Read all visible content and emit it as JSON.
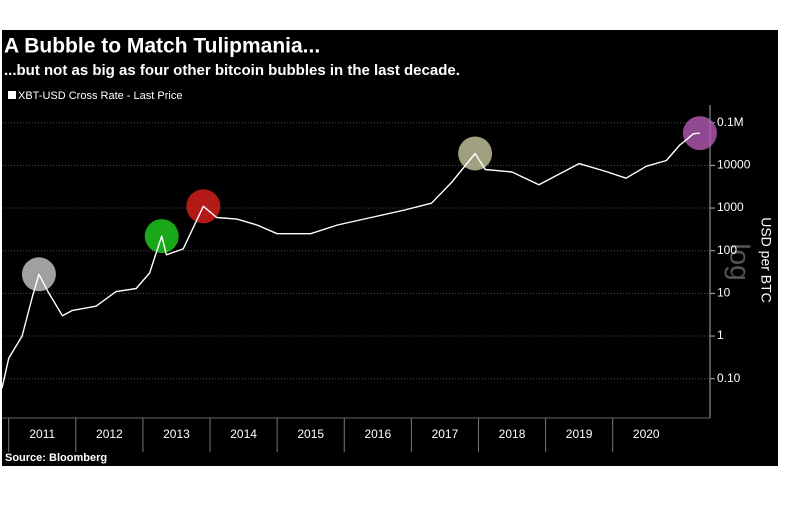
{
  "chart_data": {
    "type": "line",
    "title": "A Bubble to Match Tulipmania...",
    "subtitle": "...but not as big as four other bitcoin bubbles in the last decade.",
    "y_axis_label": "USD per BTC",
    "log_label": "log",
    "source": "Source: Bloomberg",
    "log_scale": true,
    "grid": true,
    "legend": "top-left",
    "xlim": [
      2010.9,
      2021.45
    ],
    "xticks": [
      {
        "value": 2011,
        "label": "2011"
      },
      {
        "value": 2012,
        "label": "2012"
      },
      {
        "value": 2013,
        "label": "2013"
      },
      {
        "value": 2014,
        "label": "2014"
      },
      {
        "value": 2015,
        "label": "2015"
      },
      {
        "value": 2016,
        "label": "2016"
      },
      {
        "value": 2017,
        "label": "2017"
      },
      {
        "value": 2018,
        "label": "2018"
      },
      {
        "value": 2019,
        "label": "2019"
      },
      {
        "value": 2020,
        "label": "2020"
      }
    ],
    "ylim": [
      0.012,
      260000
    ],
    "yticks": [
      {
        "value": 100000,
        "label": "0.1M"
      },
      10000,
      1000,
      100,
      10,
      1,
      {
        "value": 0.1,
        "label": "0.10"
      }
    ],
    "series": [
      {
        "name": "XBT-USD Cross Rate - Last Price",
        "color": "#ffffff",
        "x": [
          2010.9,
          2011.0,
          2011.2,
          2011.35,
          2011.45,
          2011.6,
          2011.8,
          2011.95,
          2012.3,
          2012.6,
          2012.9,
          2013.1,
          2013.28,
          2013.35,
          2013.6,
          2013.9,
          2014.1,
          2014.4,
          2014.7,
          2015.0,
          2015.5,
          2015.9,
          2016.5,
          2016.9,
          2017.3,
          2017.6,
          2017.95,
          2018.1,
          2018.5,
          2018.9,
          2019.5,
          2019.9,
          2020.2,
          2020.5,
          2020.8,
          2021.0,
          2021.1,
          2021.2,
          2021.3
        ],
        "values": [
          0.06,
          0.3,
          1,
          8,
          28,
          10,
          3,
          4,
          5,
          11,
          13,
          30,
          220,
          80,
          110,
          1100,
          600,
          550,
          400,
          250,
          250,
          400,
          650,
          900,
          1300,
          4000,
          19000,
          8000,
          7000,
          3500,
          11000,
          7200,
          5000,
          9500,
          13000,
          30000,
          40000,
          55000,
          57000
        ]
      }
    ],
    "bubbles": [
      {
        "x": 2011.45,
        "y": 28,
        "color": "#c8c8c8"
      },
      {
        "x": 2013.28,
        "y": 220,
        "color": "#1fd21f"
      },
      {
        "x": 2013.9,
        "y": 1100,
        "color": "#e0201c"
      },
      {
        "x": 2017.95,
        "y": 19000,
        "color": "#c8c8a0"
      },
      {
        "x": 2021.3,
        "y": 57000,
        "color": "#b45ab4"
      }
    ]
  }
}
